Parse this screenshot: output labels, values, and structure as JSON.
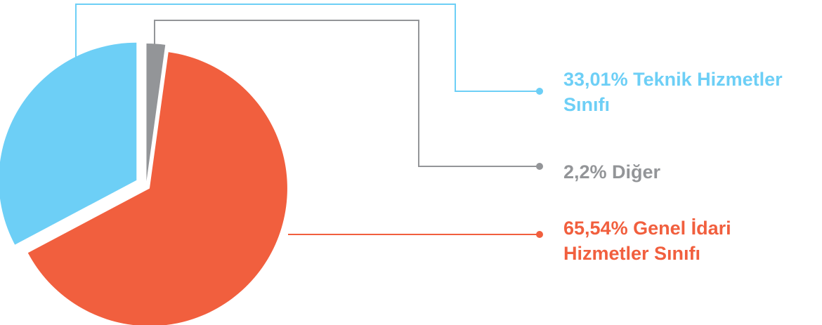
{
  "chart_data": {
    "type": "pie",
    "title": "",
    "slices": [
      {
        "key": "teknik",
        "value": 33.01,
        "color": "#6dcff6",
        "label_line1": "33,01% Teknik Hizmetler",
        "label_line2": "Sınıfı"
      },
      {
        "key": "diger",
        "value": 2.2,
        "color": "#939598",
        "label_line1": "2,2% Diğer",
        "label_line2": ""
      },
      {
        "key": "genel",
        "value": 65.54,
        "color": "#f15f3e",
        "label_line1": "65,54% Genel İdari",
        "label_line2": "Hizmetler Sınıfı"
      }
    ],
    "legend_placement": "right"
  },
  "label_colors": {
    "teknik": "#6dcff6",
    "diger": "#939598",
    "genel": "#f15f3e"
  }
}
